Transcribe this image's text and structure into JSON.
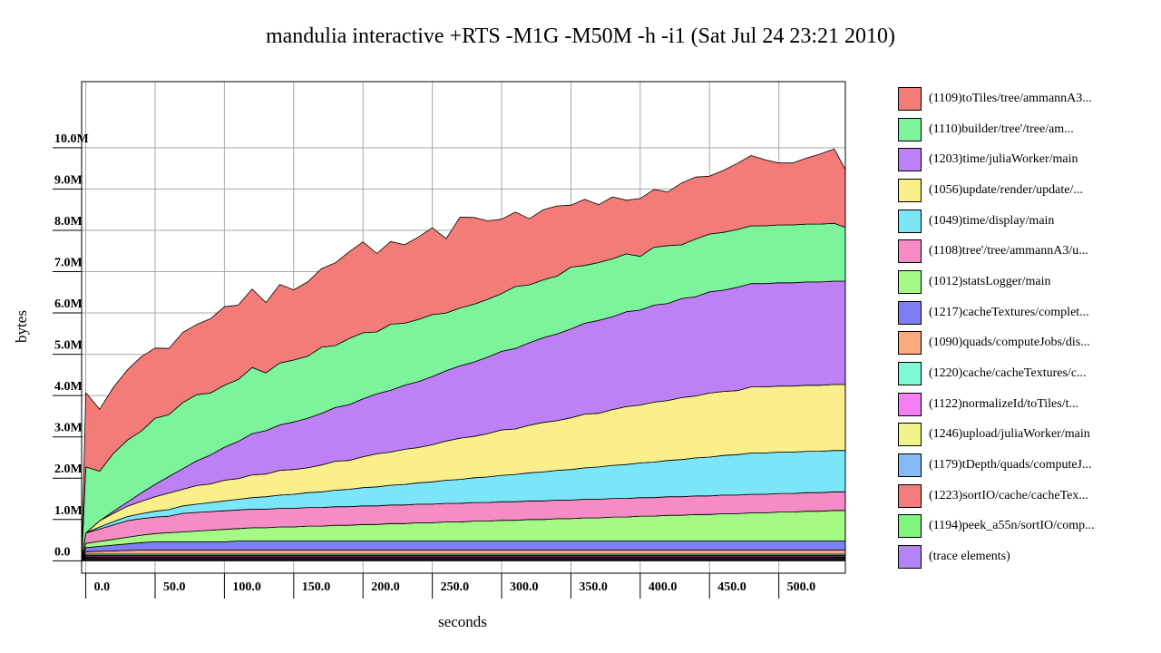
{
  "chart_data": {
    "type": "area",
    "title": "mandulia interactive +RTS -M1G -M50M -h -i1 (Sat Jul 24 23:21 2010)",
    "xlabel": "seconds",
    "ylabel": "bytes",
    "xlim": [
      -3,
      548
    ],
    "ylim": [
      -0.3,
      11.6
    ],
    "x_ticks": [
      {
        "value": 0,
        "label": "0.0"
      },
      {
        "value": 50,
        "label": "50.0"
      },
      {
        "value": 100,
        "label": "100.0"
      },
      {
        "value": 150,
        "label": "150.0"
      },
      {
        "value": 200,
        "label": "200.0"
      },
      {
        "value": 250,
        "label": "250.0"
      },
      {
        "value": 300,
        "label": "300.0"
      },
      {
        "value": 350,
        "label": "350.0"
      },
      {
        "value": 400,
        "label": "400.0"
      },
      {
        "value": 450,
        "label": "450.0"
      },
      {
        "value": 500,
        "label": "500.0"
      }
    ],
    "y_ticks": [
      {
        "value": 0,
        "label": "0.0"
      },
      {
        "value": 1,
        "label": "1.0M"
      },
      {
        "value": 2,
        "label": "2.0M"
      },
      {
        "value": 3,
        "label": "3.0M"
      },
      {
        "value": 4,
        "label": "4.0M"
      },
      {
        "value": 5,
        "label": "5.0M"
      },
      {
        "value": 6,
        "label": "6.0M"
      },
      {
        "value": 7,
        "label": "7.0M"
      },
      {
        "value": 8,
        "label": "8.0M"
      },
      {
        "value": 9,
        "label": "9.0M"
      },
      {
        "value": 10,
        "label": "10.0M"
      }
    ],
    "grid": true,
    "legend_position": "right",
    "stack_order": "first series on top",
    "x": [
      -3,
      0,
      10,
      20,
      30,
      40,
      50,
      60,
      70,
      80,
      90,
      100,
      110,
      120,
      130,
      140,
      150,
      160,
      170,
      180,
      190,
      200,
      210,
      220,
      230,
      240,
      250,
      260,
      270,
      280,
      290,
      300,
      310,
      320,
      330,
      340,
      350,
      360,
      370,
      380,
      390,
      400,
      410,
      420,
      430,
      440,
      450,
      460,
      470,
      480,
      490,
      500,
      510,
      520,
      530,
      540,
      548
    ],
    "series": [
      {
        "name": "(1109)toTiles/tree/ammannA3...",
        "color": "#f37c78",
        "values": [
          0,
          1.8,
          1.5,
          1.6,
          1.7,
          1.8,
          1.7,
          1.6,
          1.7,
          1.7,
          1.8,
          1.9,
          1.8,
          1.9,
          1.7,
          1.9,
          1.7,
          1.8,
          1.9,
          2.0,
          2.1,
          2.2,
          1.9,
          2.0,
          1.9,
          2.0,
          2.1,
          1.8,
          2.2,
          2.1,
          1.9,
          1.8,
          1.8,
          1.6,
          1.7,
          1.7,
          1.5,
          1.6,
          1.4,
          1.5,
          1.3,
          1.4,
          1.4,
          1.3,
          1.5,
          1.5,
          1.4,
          1.5,
          1.6,
          1.7,
          1.6,
          1.5,
          1.5,
          1.6,
          1.7,
          1.8,
          1.4
        ]
      },
      {
        "name": "(1110)builder/tree'/tree/am...",
        "color": "#7df49c",
        "values": [
          0,
          1.6,
          1.2,
          1.4,
          1.5,
          1.5,
          1.6,
          1.5,
          1.6,
          1.6,
          1.5,
          1.5,
          1.5,
          1.6,
          1.4,
          1.5,
          1.5,
          1.5,
          1.6,
          1.5,
          1.6,
          1.6,
          1.5,
          1.6,
          1.5,
          1.5,
          1.5,
          1.4,
          1.4,
          1.4,
          1.4,
          1.4,
          1.5,
          1.4,
          1.4,
          1.4,
          1.5,
          1.4,
          1.4,
          1.4,
          1.4,
          1.3,
          1.4,
          1.4,
          1.3,
          1.4,
          1.4,
          1.4,
          1.4,
          1.4,
          1.4,
          1.4,
          1.4,
          1.4,
          1.4,
          1.4,
          1.3
        ]
      },
      {
        "name": "(1203)time/juliaWorker/main",
        "color": "#be80f5",
        "values": [
          0,
          0,
          0,
          0.05,
          0.1,
          0.2,
          0.3,
          0.4,
          0.5,
          0.6,
          0.7,
          0.8,
          0.9,
          1.0,
          1.05,
          1.1,
          1.15,
          1.2,
          1.25,
          1.3,
          1.35,
          1.4,
          1.45,
          1.5,
          1.55,
          1.6,
          1.65,
          1.7,
          1.75,
          1.8,
          1.85,
          1.9,
          1.95,
          2.0,
          2.05,
          2.1,
          2.15,
          2.2,
          2.25,
          2.25,
          2.3,
          2.3,
          2.35,
          2.35,
          2.4,
          2.4,
          2.45,
          2.45,
          2.5,
          2.5,
          2.5,
          2.5,
          2.5,
          2.5,
          2.5,
          2.5,
          2.5
        ]
      },
      {
        "name": "(1056)update/render/update/...",
        "color": "#fbef8c",
        "values": [
          0,
          0,
          0.15,
          0.2,
          0.25,
          0.3,
          0.35,
          0.4,
          0.4,
          0.45,
          0.45,
          0.5,
          0.5,
          0.55,
          0.55,
          0.6,
          0.6,
          0.6,
          0.65,
          0.7,
          0.7,
          0.75,
          0.8,
          0.8,
          0.85,
          0.85,
          0.9,
          0.95,
          1.0,
          1.0,
          1.05,
          1.1,
          1.1,
          1.15,
          1.2,
          1.2,
          1.25,
          1.3,
          1.3,
          1.35,
          1.4,
          1.4,
          1.45,
          1.45,
          1.5,
          1.5,
          1.55,
          1.55,
          1.55,
          1.6,
          1.6,
          1.6,
          1.6,
          1.6,
          1.6,
          1.6,
          1.6
        ]
      },
      {
        "name": "(1049)time/display/main",
        "color": "#7be6f8",
        "values": [
          0,
          0,
          0.05,
          0.08,
          0.1,
          0.12,
          0.14,
          0.16,
          0.18,
          0.2,
          0.22,
          0.24,
          0.26,
          0.28,
          0.3,
          0.32,
          0.34,
          0.36,
          0.38,
          0.4,
          0.42,
          0.44,
          0.46,
          0.48,
          0.5,
          0.52,
          0.54,
          0.56,
          0.58,
          0.6,
          0.62,
          0.64,
          0.66,
          0.68,
          0.7,
          0.72,
          0.74,
          0.76,
          0.78,
          0.8,
          0.82,
          0.84,
          0.86,
          0.88,
          0.9,
          0.92,
          0.94,
          0.96,
          0.98,
          1.0,
          1.0,
          1.0,
          1.0,
          1.0,
          1.0,
          1.0,
          1.0
        ]
      },
      {
        "name": "(1108)tree'/tree/ammannA3/u...",
        "color": "#f58cc6",
        "values": [
          0,
          0.25,
          0.3,
          0.35,
          0.4,
          0.4,
          0.4,
          0.4,
          0.45,
          0.45,
          0.45,
          0.45,
          0.45,
          0.45,
          0.45,
          0.45,
          0.45,
          0.45,
          0.45,
          0.45,
          0.45,
          0.45,
          0.45,
          0.45,
          0.45,
          0.45,
          0.45,
          0.45,
          0.45,
          0.45,
          0.45,
          0.45,
          0.45,
          0.45,
          0.45,
          0.45,
          0.45,
          0.45,
          0.45,
          0.45,
          0.45,
          0.45,
          0.45,
          0.45,
          0.45,
          0.45,
          0.45,
          0.45,
          0.45,
          0.45,
          0.45,
          0.45,
          0.45,
          0.45,
          0.45,
          0.45,
          0.45
        ]
      },
      {
        "name": "(1012)statsLogger/main",
        "color": "#a4fa84",
        "values": [
          0,
          0.1,
          0.12,
          0.14,
          0.16,
          0.18,
          0.2,
          0.22,
          0.24,
          0.26,
          0.28,
          0.3,
          0.3,
          0.32,
          0.32,
          0.34,
          0.34,
          0.36,
          0.36,
          0.38,
          0.38,
          0.4,
          0.4,
          0.42,
          0.42,
          0.44,
          0.44,
          0.46,
          0.46,
          0.48,
          0.48,
          0.5,
          0.5,
          0.52,
          0.52,
          0.54,
          0.54,
          0.56,
          0.56,
          0.58,
          0.58,
          0.6,
          0.6,
          0.62,
          0.62,
          0.64,
          0.64,
          0.66,
          0.66,
          0.68,
          0.68,
          0.7,
          0.7,
          0.72,
          0.72,
          0.74,
          0.74
        ]
      },
      {
        "name": "(1217)cacheTextures/complet...",
        "color": "#7f7ff4",
        "values": [
          0,
          0.1,
          0.12,
          0.14,
          0.16,
          0.18,
          0.2,
          0.2,
          0.2,
          0.2,
          0.2,
          0.2,
          0.22,
          0.22,
          0.22,
          0.22,
          0.22,
          0.22,
          0.22,
          0.22,
          0.22,
          0.22,
          0.22,
          0.22,
          0.22,
          0.22,
          0.22,
          0.22,
          0.22,
          0.22,
          0.22,
          0.22,
          0.22,
          0.22,
          0.22,
          0.22,
          0.22,
          0.22,
          0.22,
          0.22,
          0.22,
          0.22,
          0.22,
          0.22,
          0.22,
          0.22,
          0.22,
          0.22,
          0.22,
          0.22,
          0.22,
          0.22,
          0.22,
          0.22,
          0.22,
          0.22,
          0.22
        ]
      },
      {
        "name": "(1090)quads/computeJobs/dis...",
        "color": "#fba97f",
        "values": [
          0,
          0.06,
          0.07,
          0.08,
          0.09,
          0.1,
          0.1,
          0.1,
          0.1,
          0.1,
          0.1,
          0.1,
          0.1,
          0.1,
          0.1,
          0.1,
          0.1,
          0.1,
          0.1,
          0.1,
          0.1,
          0.1,
          0.1,
          0.1,
          0.1,
          0.1,
          0.1,
          0.1,
          0.1,
          0.1,
          0.1,
          0.1,
          0.1,
          0.1,
          0.1,
          0.1,
          0.1,
          0.1,
          0.1,
          0.1,
          0.1,
          0.1,
          0.1,
          0.1,
          0.1,
          0.1,
          0.1,
          0.1,
          0.1,
          0.1,
          0.1,
          0.1,
          0.1,
          0.1,
          0.1,
          0.1,
          0.1
        ]
      },
      {
        "name": "(1220)cache/cacheTextures/c...",
        "color": "#7ff9d5",
        "values": [
          0,
          0.03,
          0.03,
          0.03,
          0.03,
          0.03,
          0.03,
          0.03,
          0.03,
          0.03,
          0.03,
          0.03,
          0.03,
          0.03,
          0.03,
          0.03,
          0.03,
          0.03,
          0.03,
          0.03,
          0.03,
          0.03,
          0.03,
          0.03,
          0.03,
          0.03,
          0.03,
          0.03,
          0.03,
          0.03,
          0.03,
          0.03,
          0.03,
          0.03,
          0.03,
          0.03,
          0.03,
          0.03,
          0.03,
          0.03,
          0.03,
          0.03,
          0.03,
          0.03,
          0.03,
          0.03,
          0.03,
          0.03,
          0.03,
          0.03,
          0.03,
          0.03,
          0.03,
          0.03,
          0.03,
          0.03,
          0.03
        ]
      },
      {
        "name": "(1122)normalizeId/toTiles/t...",
        "color": "#f47ff2",
        "values": [
          0,
          0.03,
          0.03,
          0.03,
          0.03,
          0.03,
          0.03,
          0.03,
          0.03,
          0.03,
          0.03,
          0.03,
          0.03,
          0.03,
          0.03,
          0.03,
          0.03,
          0.03,
          0.03,
          0.03,
          0.03,
          0.03,
          0.03,
          0.03,
          0.03,
          0.03,
          0.03,
          0.03,
          0.03,
          0.03,
          0.03,
          0.03,
          0.03,
          0.03,
          0.03,
          0.03,
          0.03,
          0.03,
          0.03,
          0.03,
          0.03,
          0.03,
          0.03,
          0.03,
          0.03,
          0.03,
          0.03,
          0.03,
          0.03,
          0.03,
          0.03,
          0.03,
          0.03,
          0.03,
          0.03,
          0.03,
          0.03
        ]
      },
      {
        "name": "(1246)upload/juliaWorker/main",
        "color": "#edf589",
        "values": [
          0,
          0.02,
          0.02,
          0.02,
          0.02,
          0.02,
          0.02,
          0.02,
          0.02,
          0.02,
          0.02,
          0.02,
          0.02,
          0.02,
          0.02,
          0.02,
          0.02,
          0.02,
          0.02,
          0.02,
          0.02,
          0.02,
          0.02,
          0.02,
          0.02,
          0.02,
          0.02,
          0.02,
          0.02,
          0.02,
          0.02,
          0.02,
          0.02,
          0.02,
          0.02,
          0.02,
          0.02,
          0.02,
          0.02,
          0.02,
          0.02,
          0.02,
          0.02,
          0.02,
          0.02,
          0.02,
          0.02,
          0.02,
          0.02,
          0.02,
          0.02,
          0.02,
          0.02,
          0.02,
          0.02,
          0.02,
          0.02
        ]
      },
      {
        "name": "(1179)tDepth/quads/computeJ...",
        "color": "#84baf8",
        "values": [
          0,
          0.02,
          0.02,
          0.02,
          0.02,
          0.02,
          0.02,
          0.02,
          0.02,
          0.02,
          0.02,
          0.02,
          0.02,
          0.02,
          0.02,
          0.02,
          0.02,
          0.02,
          0.02,
          0.02,
          0.02,
          0.02,
          0.02,
          0.02,
          0.02,
          0.02,
          0.02,
          0.02,
          0.02,
          0.02,
          0.02,
          0.02,
          0.02,
          0.02,
          0.02,
          0.02,
          0.02,
          0.02,
          0.02,
          0.02,
          0.02,
          0.02,
          0.02,
          0.02,
          0.02,
          0.02,
          0.02,
          0.02,
          0.02,
          0.02,
          0.02,
          0.02,
          0.02,
          0.02,
          0.02,
          0.02,
          0.02
        ]
      },
      {
        "name": "(1223)sortIO/cache/cacheTex...",
        "color": "#f37c7c",
        "values": [
          0,
          0.02,
          0.02,
          0.02,
          0.02,
          0.02,
          0.02,
          0.02,
          0.02,
          0.02,
          0.02,
          0.02,
          0.02,
          0.02,
          0.02,
          0.02,
          0.02,
          0.02,
          0.02,
          0.02,
          0.02,
          0.02,
          0.02,
          0.02,
          0.02,
          0.02,
          0.02,
          0.02,
          0.02,
          0.02,
          0.02,
          0.02,
          0.02,
          0.02,
          0.02,
          0.02,
          0.02,
          0.02,
          0.02,
          0.02,
          0.02,
          0.02,
          0.02,
          0.02,
          0.02,
          0.02,
          0.02,
          0.02,
          0.02,
          0.02,
          0.02,
          0.02,
          0.02,
          0.02,
          0.02,
          0.02,
          0.02
        ]
      },
      {
        "name": "(1194)peek_a55n/sortIO/comp...",
        "color": "#80f47c",
        "values": [
          0,
          0.02,
          0.02,
          0.02,
          0.02,
          0.02,
          0.02,
          0.02,
          0.02,
          0.02,
          0.02,
          0.02,
          0.02,
          0.02,
          0.02,
          0.02,
          0.02,
          0.02,
          0.02,
          0.02,
          0.02,
          0.02,
          0.02,
          0.02,
          0.02,
          0.02,
          0.02,
          0.02,
          0.02,
          0.02,
          0.02,
          0.02,
          0.02,
          0.02,
          0.02,
          0.02,
          0.02,
          0.02,
          0.02,
          0.02,
          0.02,
          0.02,
          0.02,
          0.02,
          0.02,
          0.02,
          0.02,
          0.02,
          0.02,
          0.02,
          0.02,
          0.02,
          0.02,
          0.02,
          0.02,
          0.02,
          0.02
        ]
      },
      {
        "name": "(trace elements)",
        "color": "#b383f5",
        "values": [
          0,
          0.02,
          0.02,
          0.02,
          0.02,
          0.02,
          0.02,
          0.02,
          0.02,
          0.02,
          0.02,
          0.02,
          0.02,
          0.02,
          0.02,
          0.02,
          0.02,
          0.02,
          0.02,
          0.02,
          0.02,
          0.02,
          0.02,
          0.02,
          0.02,
          0.02,
          0.02,
          0.02,
          0.02,
          0.02,
          0.02,
          0.02,
          0.02,
          0.02,
          0.02,
          0.02,
          0.02,
          0.02,
          0.02,
          0.02,
          0.02,
          0.02,
          0.02,
          0.02,
          0.02,
          0.02,
          0.02,
          0.02,
          0.02,
          0.02,
          0.02,
          0.02,
          0.02,
          0.02,
          0.02,
          0.02,
          0.02
        ]
      }
    ]
  }
}
